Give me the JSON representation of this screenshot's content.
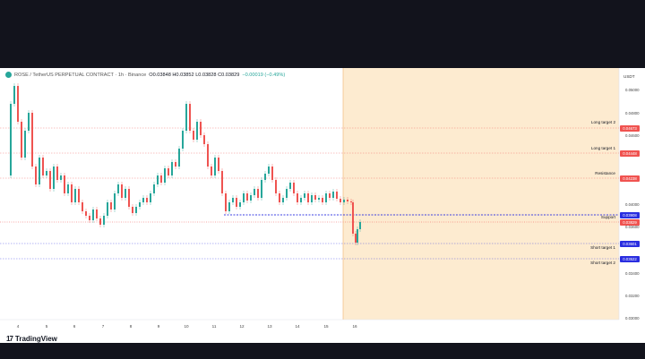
{
  "header": {
    "symbol": "ROSE / TetherUS PERPETUAL CONTRACT · 1h · Binance",
    "ohlc": "O0.03848 H0.03852 L0.03828 C0.03829",
    "change": "−0.00019 (−0.49%)"
  },
  "brand": {
    "name": "TradingView",
    "mark": "17"
  },
  "price_axis": {
    "currency": "USDT",
    "labels": [
      "0.05000",
      "0.04800",
      "0.04600",
      "0.04000",
      "0.03600",
      "0.03400",
      "0.03200",
      "0.03000"
    ]
  },
  "time_axis": {
    "labels": [
      "4",
      "5",
      "6",
      "7",
      "8",
      "9",
      "10",
      "11",
      "12",
      "13",
      "14",
      "15",
      "16"
    ]
  },
  "levels": [
    {
      "name": "Long target 2",
      "price": "0.04673",
      "color": "#f05350"
    },
    {
      "name": "Long target 1",
      "price": "0.04448",
      "color": "#f05350"
    },
    {
      "name": "Resistance",
      "price": "0.04238",
      "color": "#f05350"
    },
    {
      "name": "Support",
      "price": "0.03908",
      "color": "#2a2ee0"
    },
    {
      "name": "Short target 1",
      "price": "0.03601",
      "color": "#2a2ee0"
    },
    {
      "name": "Short target 2",
      "price": "0.03522",
      "color": "#2a2ee0"
    }
  ],
  "current_price": {
    "price": "0.03829",
    "color": "#f05350"
  },
  "colors": {
    "up": "#26a69a",
    "down": "#ef5350",
    "projection_zone": "#fdebd0",
    "resistance_line": "#e57373",
    "support_line": "#1a237e"
  }
}
